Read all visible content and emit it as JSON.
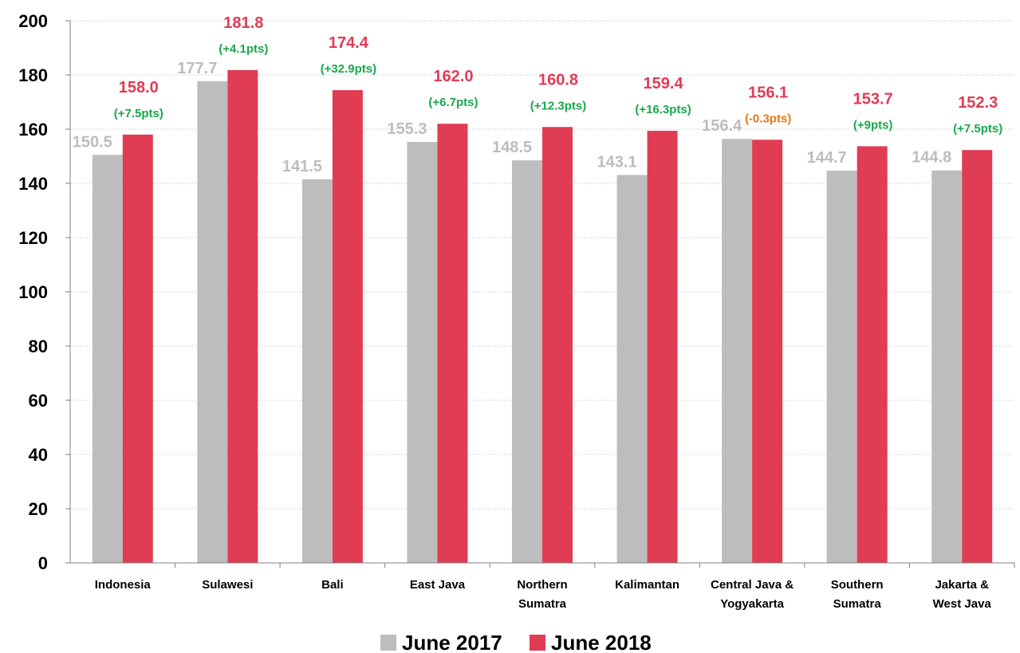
{
  "chart_data": {
    "type": "bar",
    "title": "",
    "xlabel": "",
    "ylabel": "",
    "ylim": [
      0,
      200
    ],
    "yticks": [
      0,
      20,
      40,
      60,
      80,
      100,
      120,
      140,
      160,
      180,
      200
    ],
    "grid": true,
    "legend_position": "bottom",
    "categories": [
      [
        "Indonesia"
      ],
      [
        "Sulawesi"
      ],
      [
        "Bali"
      ],
      [
        "East Java"
      ],
      [
        "Northern",
        "Sumatra"
      ],
      [
        "Kalimantan"
      ],
      [
        "Central Java &",
        "Yogyakarta"
      ],
      [
        "Southern",
        "Sumatra"
      ],
      [
        "Jakarta &",
        "West Java"
      ]
    ],
    "series": [
      {
        "name": "June 2017",
        "color": "#bdbdbd",
        "values": [
          150.5,
          177.7,
          141.5,
          155.3,
          148.5,
          143.1,
          156.4,
          144.7,
          144.8
        ],
        "labels": [
          "150.5",
          "177.7",
          "141.5",
          "155.3",
          "148.5",
          "143.1",
          "156.4",
          "144.7",
          "144.8"
        ]
      },
      {
        "name": "June 2018",
        "color": "#e03c54",
        "values": [
          158.0,
          181.8,
          174.4,
          162.0,
          160.8,
          159.4,
          156.1,
          153.7,
          152.3
        ],
        "labels": [
          "158.0",
          "181.8",
          "174.4",
          "162.0",
          "160.8",
          "159.4",
          "156.1",
          "153.7",
          "152.3"
        ]
      }
    ],
    "changes": [
      {
        "text": "(+7.5pts)",
        "color": "#1aa84b"
      },
      {
        "text": "(+4.1pts)",
        "color": "#1aa84b"
      },
      {
        "text": "(+32.9pts)",
        "color": "#1aa84b"
      },
      {
        "text": "(+6.7pts)",
        "color": "#1aa84b"
      },
      {
        "text": "(+12.3pts)",
        "color": "#1aa84b"
      },
      {
        "text": "(+16.3pts)",
        "color": "#1aa84b"
      },
      {
        "text": "(-0.3pts)",
        "color": "#e07b14"
      },
      {
        "text": "(+9pts)",
        "color": "#1aa84b"
      },
      {
        "text": "(+7.5pts)",
        "color": "#1aa84b"
      }
    ],
    "label_colors": {
      "june_2017": "#bdbdbd",
      "june_2018": "#e03c54"
    }
  }
}
